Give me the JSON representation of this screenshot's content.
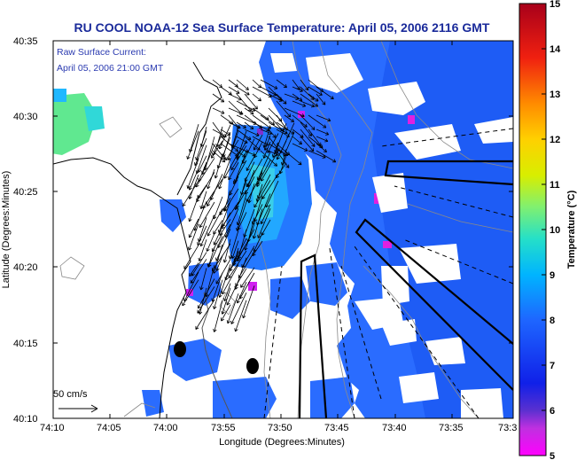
{
  "title": "RU COOL  NOAA-12  Sea Surface Temperature:  April 05, 2006 2116 GMT",
  "annotation": {
    "line1": "Raw Surface Current:",
    "line2": "April 05, 2006 21:00 GMT"
  },
  "scale_label": "50 cm/s",
  "x_axis": {
    "label": "Longitude (Degrees:Minutes)",
    "ticks": [
      "74:10",
      "74:05",
      "74:00",
      "73:55",
      "73:50",
      "73:45",
      "73:40",
      "73:35",
      "73:3"
    ]
  },
  "y_axis": {
    "label": "Latitude (Degrees:Minutes)",
    "ticks": [
      "40:35",
      "40:30",
      "40:25",
      "40:20",
      "40:15",
      "40:10"
    ]
  },
  "colorbar": {
    "label": "Temperature (°C)",
    "ticks": [
      "15",
      "14",
      "13",
      "12",
      "11",
      "10",
      "9",
      "8",
      "7",
      "6",
      "5"
    ],
    "min": 5,
    "max": 15
  },
  "colors": {
    "title": "#1a2a9a",
    "annotation": "#2a3ab0",
    "sst_dominant": "#2a6cff",
    "vector": "#000000"
  }
}
